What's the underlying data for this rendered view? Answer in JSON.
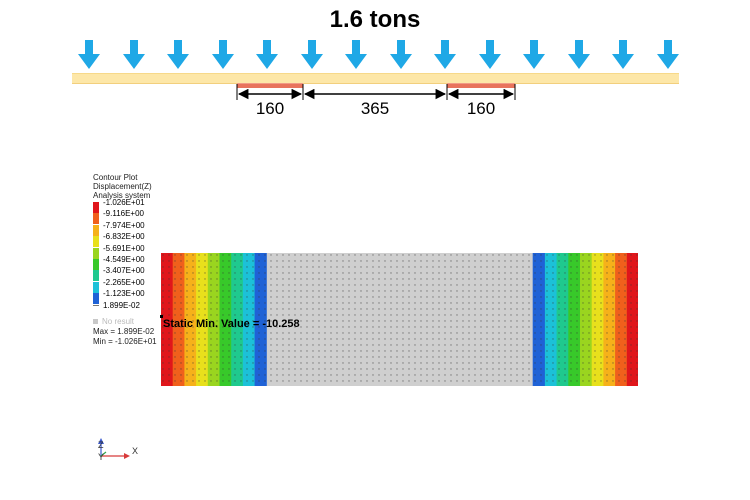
{
  "load": {
    "label": "1.6 tons",
    "arrow_count": 14,
    "arrow_color": "#1fa8e6"
  },
  "beam": {
    "color": "#fde7a8",
    "support_color": "#e8735c"
  },
  "dimensions": {
    "left": "160",
    "middle": "365",
    "right": "160"
  },
  "legend": {
    "title_lines": [
      "Contour Plot",
      "Displacement(Z)",
      "Analysis system"
    ],
    "levels": [
      {
        "value": "-1.026E+01",
        "color": "#e0161b"
      },
      {
        "value": "-9.116E+00",
        "color": "#f0601c"
      },
      {
        "value": "-7.974E+00",
        "color": "#f6b11a"
      },
      {
        "value": "-6.832E+00",
        "color": "#e8e01c"
      },
      {
        "value": "-5.691E+00",
        "color": "#9ad51f"
      },
      {
        "value": "-4.549E+00",
        "color": "#38c92a"
      },
      {
        "value": "-3.407E+00",
        "color": "#1fc98e"
      },
      {
        "value": "-2.265E+00",
        "color": "#1cc1d8"
      },
      {
        "value": "-1.123E+00",
        "color": "#1f62d6"
      },
      {
        "value": "1.899E-02",
        "color": "#c8c8c8"
      }
    ],
    "no_result": "No result",
    "max": "Max = 1.899E-02",
    "min": "Min = -1.026E+01"
  },
  "contour": {
    "band_colors": [
      "#e0161b",
      "#f0601c",
      "#f6b11a",
      "#e8e01c",
      "#9ad51f",
      "#38c92a",
      "#1fc98e",
      "#1cc1d8",
      "#1f62d6"
    ],
    "neutral_color": "#cfcfcf",
    "static_min_label": "Static Min. Value =  -10.258"
  },
  "axes": {
    "z": "Z",
    "y": "Y",
    "x": "X"
  }
}
